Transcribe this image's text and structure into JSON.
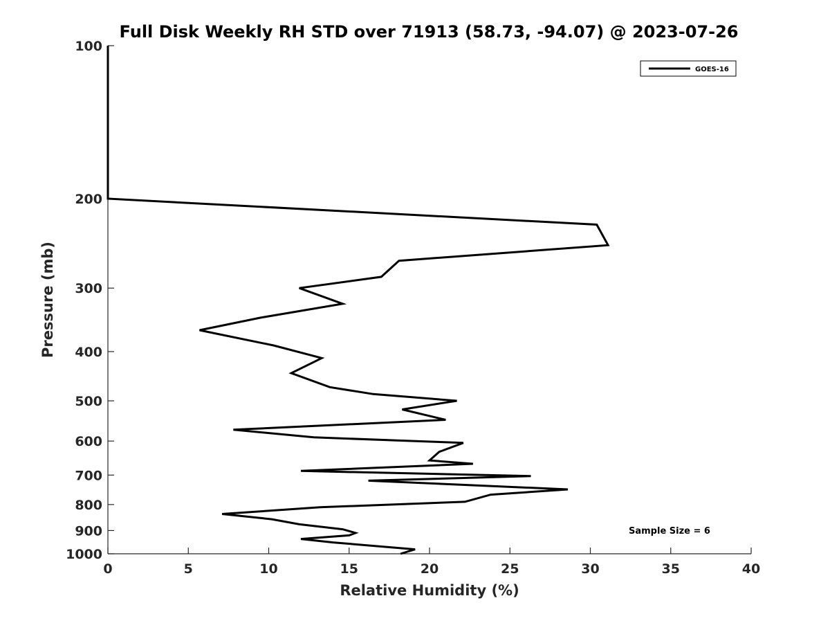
{
  "chart_data": {
    "type": "line",
    "title": "Full Disk Weekly RH STD over 71913 (58.73, -94.07) @ 2023-07-26",
    "xlabel": "Relative Humidity (%)",
    "ylabel": "Pressure (mb)",
    "xlim": [
      0,
      40
    ],
    "ylim": [
      100,
      1000
    ],
    "y_scale": "log",
    "y_reversed": true,
    "x_ticks": [
      "0",
      "5",
      "10",
      "15",
      "20",
      "25",
      "30",
      "35",
      "40"
    ],
    "y_ticks": [
      "100",
      "200",
      "300",
      "400",
      "500",
      "600",
      "700",
      "800",
      "900",
      "1000"
    ],
    "grid": false,
    "legend_position": "top-right",
    "series": [
      {
        "name": "GOES-16",
        "color": "#000000",
        "points": [
          [
            0,
            100
          ],
          [
            0,
            150
          ],
          [
            0,
            200
          ],
          [
            30.4,
            225
          ],
          [
            31.1,
            247
          ],
          [
            18.1,
            265
          ],
          [
            17.0,
            285
          ],
          [
            11.9,
            300
          ],
          [
            14.6,
            322
          ],
          [
            9.5,
            343
          ],
          [
            5.7,
            363
          ],
          [
            10.3,
            389
          ],
          [
            13.3,
            412
          ],
          [
            11.4,
            441
          ],
          [
            13.8,
            470
          ],
          [
            16.5,
            485
          ],
          [
            21.7,
            500
          ],
          [
            18.3,
            520
          ],
          [
            21.0,
            545
          ],
          [
            7.8,
            570
          ],
          [
            12.8,
            590
          ],
          [
            22.1,
            605
          ],
          [
            20.6,
            630
          ],
          [
            20.0,
            655
          ],
          [
            22.7,
            665
          ],
          [
            12.0,
            687
          ],
          [
            26.3,
            703
          ],
          [
            16.2,
            718
          ],
          [
            28.6,
            747
          ],
          [
            23.8,
            765
          ],
          [
            22.2,
            790
          ],
          [
            13.2,
            810
          ],
          [
            7.1,
            835
          ],
          [
            10.2,
            855
          ],
          [
            11.9,
            875
          ],
          [
            14.6,
            895
          ],
          [
            15.4,
            910
          ],
          [
            15.0,
            920
          ],
          [
            12.0,
            935
          ],
          [
            14.0,
            950
          ],
          [
            19.1,
            980
          ],
          [
            18.2,
            1000
          ]
        ]
      }
    ],
    "annotations": [
      {
        "text": "Sample Size = 6",
        "position": "bottom-right"
      }
    ]
  }
}
